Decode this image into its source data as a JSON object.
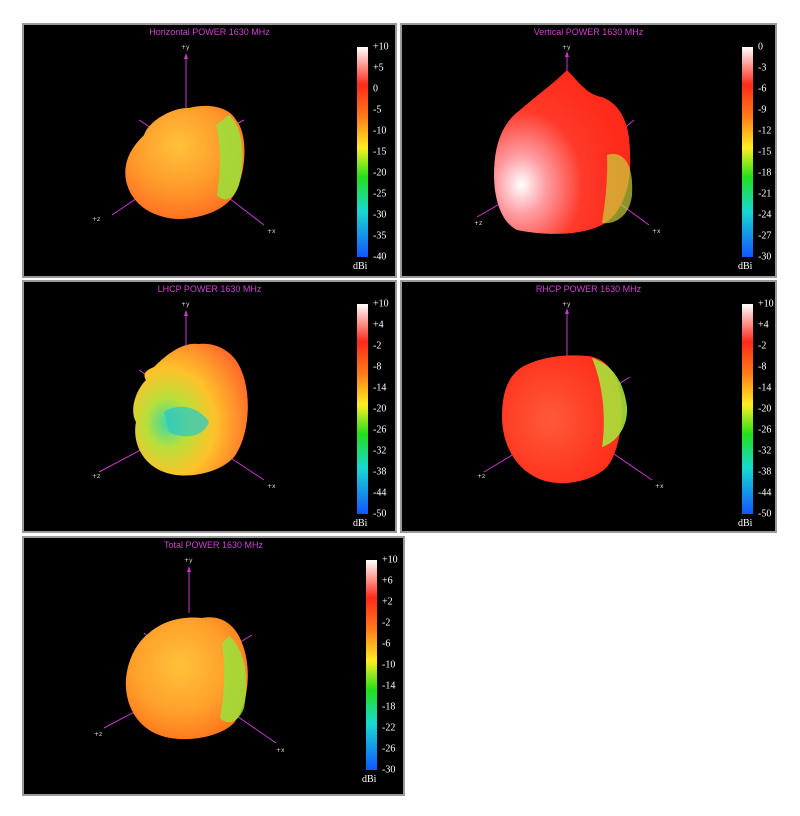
{
  "colors": {
    "axis": "#c837d0",
    "title": "#d13fd6",
    "background": "#000000",
    "colorbar": [
      "#ffffff",
      "#ff2a1a",
      "#ffa31a",
      "#ffee22",
      "#22e01a",
      "#16d9d0",
      "#1256ff"
    ]
  },
  "chart_data": [
    {
      "type": "3d-radiation-pattern",
      "title": "Horizontal POWER 1630  MHz",
      "axes": [
        "+y",
        "+z",
        "+x"
      ],
      "colorbar": {
        "unit": "dBi",
        "ticks": [
          "+10",
          "+5",
          "0",
          "-5",
          "-10",
          "-15",
          "-20",
          "-25",
          "-30",
          "-35",
          "-40"
        ],
        "range": [
          -40,
          10
        ]
      },
      "fill": [
        "#ff9a2a",
        "#ffb22e",
        "#ff7a22"
      ],
      "side_fill": "#9ae23a"
    },
    {
      "type": "3d-radiation-pattern",
      "title": "Vertical POWER 1630  MHz",
      "axes": [
        "+y",
        "+z",
        "+x"
      ],
      "colorbar": {
        "unit": "dBi",
        "ticks": [
          "0",
          "-3",
          "-6",
          "-9",
          "-12",
          "-15",
          "-18",
          "-21",
          "-24",
          "-27",
          "-30"
        ],
        "range": [
          -30,
          0
        ]
      },
      "fill": [
        "#ff3a2a",
        "#ff5a3a",
        "#ff2a22"
      ],
      "side_fill": "#c9d23a"
    },
    {
      "type": "3d-radiation-pattern",
      "title": "LHCP POWER 1630  MHz",
      "axes": [
        "+y",
        "+z",
        "+x"
      ],
      "colorbar": {
        "unit": "dBi",
        "ticks": [
          "+10",
          "+4",
          "-2",
          "-8",
          "-14",
          "-20",
          "-26",
          "-32",
          "-38",
          "-44",
          "-50"
        ],
        "range": [
          -50,
          10
        ]
      },
      "fill": [
        "#c9e03a",
        "#ffc22a",
        "#ff7a2a"
      ],
      "side_fill": "#6ad89a"
    },
    {
      "type": "3d-radiation-pattern",
      "title": "RHCP POWER 1630  MHz",
      "axes": [
        "+y",
        "+z",
        "+x"
      ],
      "colorbar": {
        "unit": "dBi",
        "ticks": [
          "+10",
          "+4",
          "-2",
          "-8",
          "-14",
          "-20",
          "-26",
          "-32",
          "-38",
          "-44",
          "-50"
        ],
        "range": [
          -50,
          10
        ]
      },
      "fill": [
        "#ff3a22",
        "#ff5a2a",
        "#ff2a1a"
      ],
      "side_fill": "#a8e23a"
    },
    {
      "type": "3d-radiation-pattern",
      "title": "Total POWER 1630  MHz",
      "axes": [
        "+y",
        "+z",
        "+x"
      ],
      "colorbar": {
        "unit": "dBi",
        "ticks": [
          "+10",
          "+6",
          "+2",
          "-2",
          "-6",
          "-10",
          "-14",
          "-18",
          "-22",
          "-26",
          "-30"
        ],
        "range": [
          -30,
          10
        ]
      },
      "fill": [
        "#ffb02a",
        "#ff9a22",
        "#ff6a1a"
      ],
      "side_fill": "#9ae23a"
    }
  ]
}
